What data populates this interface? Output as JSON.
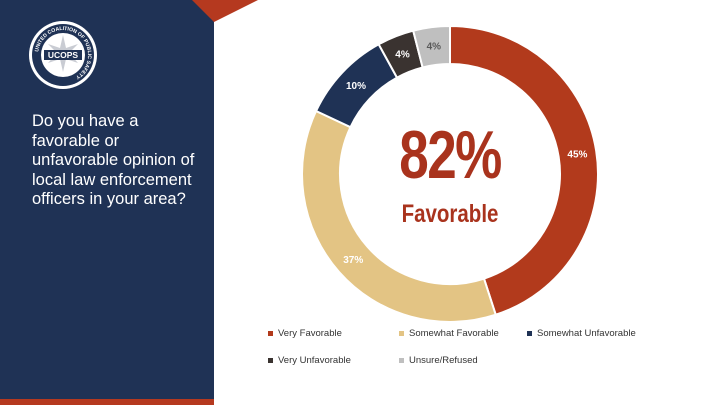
{
  "org": {
    "logo_ring_text": "UNITED COALITION OF PUBLIC SAFETY",
    "logo_name": "UCOPS"
  },
  "question": "Do you have a favorable or unfavorable opinion of local law enforcement officers in your area?",
  "highlight": {
    "value": "82%",
    "label": "Favorable"
  },
  "chart_data": {
    "type": "pie",
    "style": "donut",
    "categories": [
      "Very Favorable",
      "Somewhat Favorable",
      "Somewhat Unfavorable",
      "Very Unfavorable",
      "Unsure/Refused"
    ],
    "values": [
      45,
      37,
      10,
      4,
      4
    ],
    "data_labels": [
      "45%",
      "37%",
      "10%",
      "4%",
      "4%"
    ],
    "colors": [
      "#b23a1c",
      "#e3c484",
      "#1f3255",
      "#3a3330",
      "#bfbfbf"
    ],
    "label_colors": [
      "#ffffff",
      "#ffffff",
      "#ffffff",
      "#ffffff",
      "#595959"
    ],
    "legend_position": "bottom"
  },
  "colors": {
    "panel": "#1f3255",
    "accent": "#b5391f"
  }
}
